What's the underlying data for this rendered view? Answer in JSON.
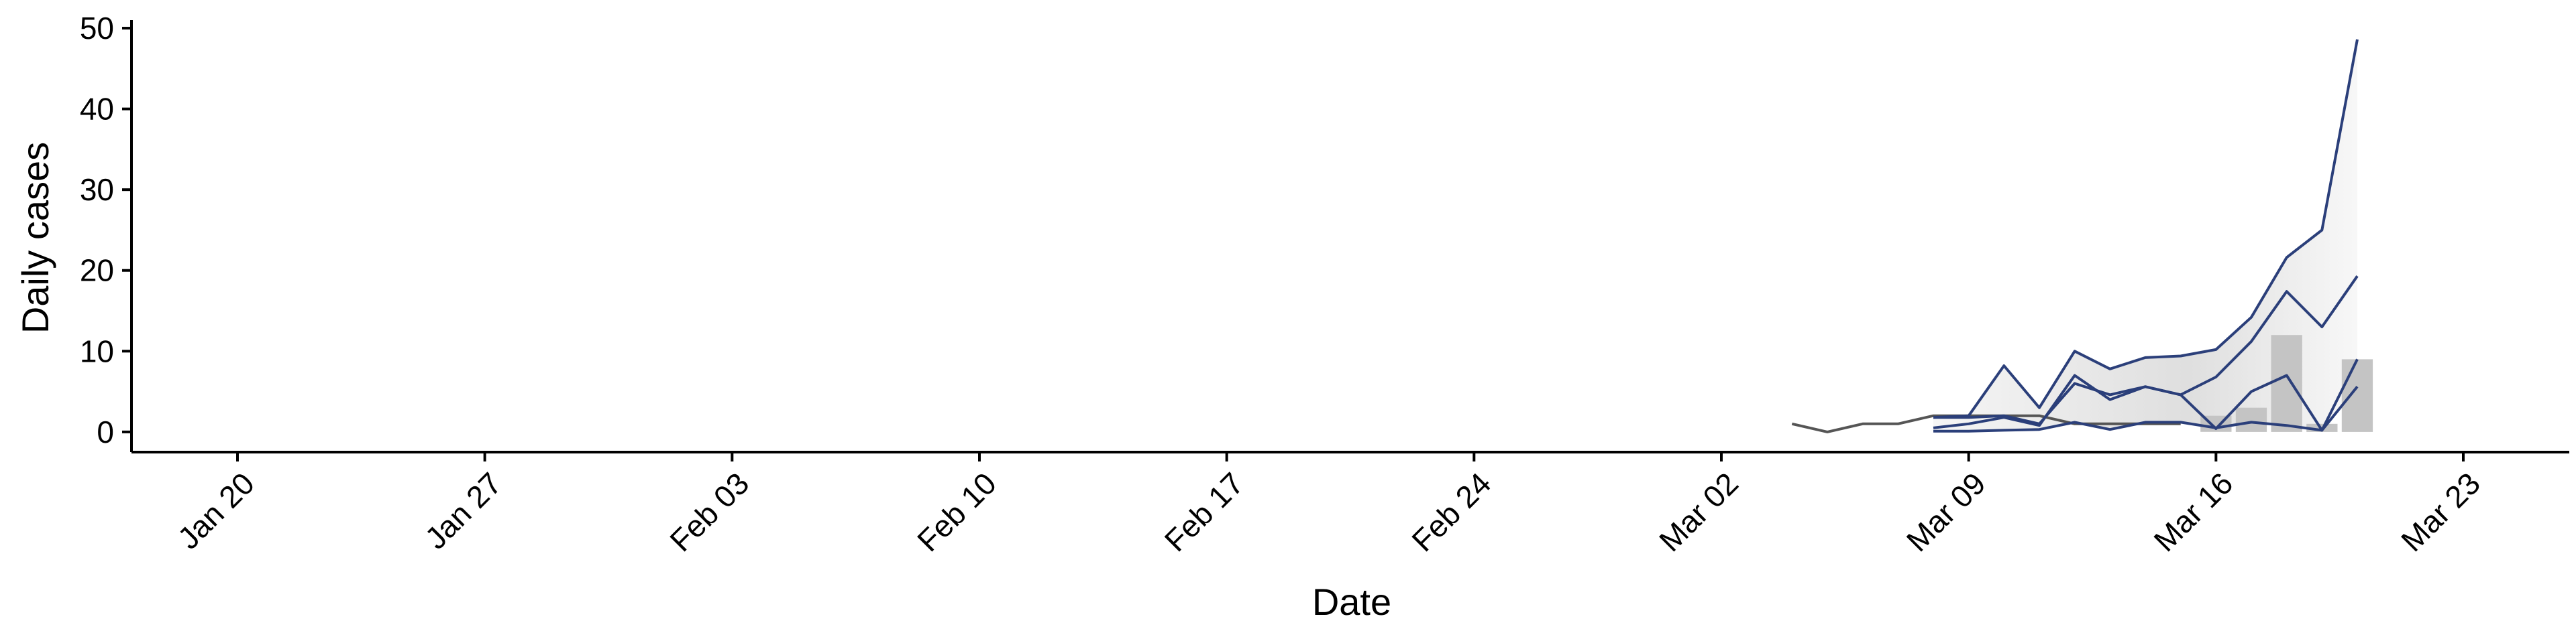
{
  "chart_data": {
    "type": "line",
    "xlabel": "Date",
    "ylabel": "Daily cases",
    "x_axis": {
      "type": "date",
      "range": [
        "2020-01-17",
        "2020-03-26"
      ],
      "ticks": [
        {
          "date": "2020-01-20",
          "label": "Jan 20"
        },
        {
          "date": "2020-01-27",
          "label": "Jan 27"
        },
        {
          "date": "2020-02-03",
          "label": "Feb 03"
        },
        {
          "date": "2020-02-10",
          "label": "Feb 10"
        },
        {
          "date": "2020-02-17",
          "label": "Feb 17"
        },
        {
          "date": "2020-02-24",
          "label": "Feb 24"
        },
        {
          "date": "2020-03-02",
          "label": "Mar 02"
        },
        {
          "date": "2020-03-09",
          "label": "Mar 09"
        },
        {
          "date": "2020-03-16",
          "label": "Mar 16"
        },
        {
          "date": "2020-03-23",
          "label": "Mar 23"
        }
      ]
    },
    "y_axis": {
      "range": [
        -2.5,
        51
      ],
      "ticks": [
        0,
        10,
        20,
        30,
        40,
        50
      ]
    },
    "grid": false,
    "legend": "none",
    "colors": {
      "forecast_line": "#2b3f7a",
      "observed_line": "#555555",
      "bars": "#c4c4c4",
      "band_fill": "#d9d9d9",
      "axis": "#000000"
    },
    "bars": [
      {
        "date": "2020-03-16",
        "value": 2
      },
      {
        "date": "2020-03-17",
        "value": 3
      },
      {
        "date": "2020-03-18",
        "value": 12
      },
      {
        "date": "2020-03-19",
        "value": 1
      },
      {
        "date": "2020-03-20",
        "value": 9
      }
    ],
    "observed": {
      "dates": [
        "2020-03-04",
        "2020-03-05",
        "2020-03-06",
        "2020-03-07",
        "2020-03-08",
        "2020-03-09",
        "2020-03-10",
        "2020-03-11",
        "2020-03-12",
        "2020-03-13",
        "2020-03-14",
        "2020-03-15"
      ],
      "values": [
        1,
        0,
        1,
        1,
        2,
        2,
        2,
        2,
        1,
        1,
        1,
        1
      ]
    },
    "band": {
      "dates": [
        "2020-03-08",
        "2020-03-09",
        "2020-03-10",
        "2020-03-11",
        "2020-03-12",
        "2020-03-13",
        "2020-03-14",
        "2020-03-15",
        "2020-03-16",
        "2020-03-17",
        "2020-03-18",
        "2020-03-19",
        "2020-03-20"
      ],
      "upper": [
        1.8,
        2.0,
        8.2,
        3.0,
        10.0,
        7.8,
        9.2,
        9.4,
        10.2,
        14.2,
        21.6,
        25.0,
        48.6
      ],
      "lower": [
        0.1,
        0.1,
        0.2,
        0.3,
        1.2,
        0.3,
        1.2,
        1.2,
        0.5,
        1.2,
        0.8,
        0.2,
        5.6
      ]
    },
    "series": [
      {
        "values": [
          1.8,
          2.0,
          8.2,
          3.0,
          10.0,
          7.8,
          9.2,
          9.4,
          10.2,
          14.2,
          21.6,
          25.0,
          48.6
        ]
      },
      {
        "values": [
          1.8,
          1.8,
          2.0,
          1.0,
          6.0,
          4.6,
          5.6,
          4.6,
          6.8,
          11.2,
          17.4,
          13.0,
          19.3
        ]
      },
      {
        "values": [
          0.5,
          1.0,
          1.8,
          0.8,
          7.0,
          4.0,
          5.6,
          4.6,
          0.4,
          5.0,
          7.0,
          0.2,
          9.0
        ]
      },
      {
        "values": [
          0.1,
          0.1,
          0.2,
          0.3,
          1.2,
          0.3,
          1.2,
          1.2,
          0.5,
          1.2,
          0.8,
          0.2,
          5.6
        ]
      }
    ]
  }
}
